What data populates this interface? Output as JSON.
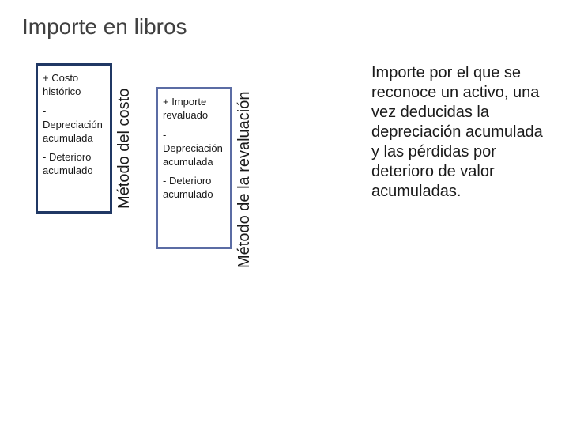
{
  "title": "Importe en libros",
  "method1": {
    "label": "Método del costo",
    "border_color": "#203864",
    "items": [
      "+ Costo histórico",
      "- Depreciación acumulada",
      "- Deterioro acumulado"
    ]
  },
  "method2": {
    "label": "Método de la revaluación",
    "border_color": "#5b6ca4",
    "items": [
      "+ Importe revaluado",
      "- Depreciación acumulada",
      "- Deterioro acumulado"
    ]
  },
  "description": "Importe por el que se reconoce un activo, una vez deducidas la depreciación acumulada y las pérdidas por deterioro de valor acumuladas.",
  "styling": {
    "background_color": "#ffffff",
    "title_fontsize": 28,
    "title_color": "#404040",
    "box_fontsize": 13,
    "label_fontsize": 20,
    "description_fontsize": 20,
    "text_color": "#1a1a1a"
  }
}
